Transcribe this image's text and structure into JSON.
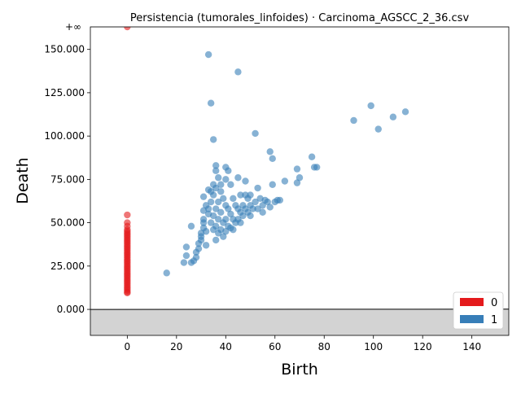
{
  "chart_data": {
    "type": "scatter",
    "title": "Persistencia (tumorales_linfoides) · Carcinoma_AGSCC_2_36.csv",
    "xlabel": "Birth",
    "ylabel": "Death",
    "xlim": [
      -15,
      155
    ],
    "ylim": [
      -15000,
      163000
    ],
    "x_ticks": [
      0,
      20,
      40,
      60,
      80,
      100,
      120,
      140
    ],
    "y_ticks": [
      0,
      25000,
      50000,
      75000,
      100000,
      125000,
      150000
    ],
    "y_tick_labels": [
      "0.000",
      "25.000",
      "50.000",
      "75.000",
      "100.000",
      "125.000",
      "150.000"
    ],
    "infinity_value": 163000,
    "infinity_label": "+∞",
    "diagonal": true,
    "legend": {
      "placement": "bottom-right",
      "entries": [
        "0",
        "1"
      ]
    },
    "colors": {
      "dim0": "#e41a1c",
      "dim1": "#377eb8",
      "diagonal_fill": "#d3d3d3",
      "infinity_line": "#808080"
    },
    "series": [
      {
        "name": "0",
        "points": [
          [
            0,
            163000
          ],
          [
            0,
            54500
          ],
          [
            0,
            50000
          ],
          [
            0,
            48000
          ],
          [
            0,
            46000
          ],
          [
            0,
            45000
          ],
          [
            0,
            44000
          ],
          [
            0,
            43000
          ],
          [
            0,
            42000
          ],
          [
            0,
            41000
          ],
          [
            0,
            40000
          ],
          [
            0,
            39000
          ],
          [
            0,
            38000
          ],
          [
            0,
            37000
          ],
          [
            0,
            36000
          ],
          [
            0,
            35000
          ],
          [
            0,
            34000
          ],
          [
            0,
            33000
          ],
          [
            0,
            32000
          ],
          [
            0,
            31000
          ],
          [
            0,
            30000
          ],
          [
            0,
            29000
          ],
          [
            0,
            28000
          ],
          [
            0,
            27000
          ],
          [
            0,
            26000
          ],
          [
            0,
            25000
          ],
          [
            0,
            24000
          ],
          [
            0,
            23000
          ],
          [
            0,
            22000
          ],
          [
            0,
            21000
          ],
          [
            0,
            20000
          ],
          [
            0,
            19000
          ],
          [
            0,
            18000
          ],
          [
            0,
            17000
          ],
          [
            0,
            16000
          ],
          [
            0,
            15000
          ],
          [
            0,
            14000
          ],
          [
            0,
            13000
          ],
          [
            0,
            12000
          ],
          [
            0,
            11000
          ],
          [
            0,
            10000
          ],
          [
            0,
            9500
          ]
        ]
      },
      {
        "name": "1",
        "points": [
          [
            16,
            21000
          ],
          [
            23,
            27000
          ],
          [
            24,
            31000
          ],
          [
            24,
            36000
          ],
          [
            26,
            48000
          ],
          [
            26,
            27000
          ],
          [
            27,
            28000
          ],
          [
            28,
            30000
          ],
          [
            28,
            33000
          ],
          [
            29,
            35000
          ],
          [
            29,
            38000
          ],
          [
            30,
            40000
          ],
          [
            30,
            42000
          ],
          [
            30,
            44000
          ],
          [
            31,
            52000
          ],
          [
            31,
            47000
          ],
          [
            31,
            50000
          ],
          [
            31,
            57000
          ],
          [
            31,
            65000
          ],
          [
            32,
            60000
          ],
          [
            32,
            37000
          ],
          [
            32,
            45000
          ],
          [
            33,
            69000
          ],
          [
            33,
            55000
          ],
          [
            33,
            147000
          ],
          [
            33,
            58000
          ],
          [
            34,
            119000
          ],
          [
            34,
            50000
          ],
          [
            34,
            62000
          ],
          [
            34,
            68000
          ],
          [
            35,
            72000
          ],
          [
            35,
            98000
          ],
          [
            35,
            66000
          ],
          [
            35,
            54000
          ],
          [
            35,
            46000
          ],
          [
            36,
            83000
          ],
          [
            36,
            80000
          ],
          [
            36,
            70000
          ],
          [
            36,
            58000
          ],
          [
            36,
            48000
          ],
          [
            36,
            40000
          ],
          [
            37,
            76000
          ],
          [
            37,
            62000
          ],
          [
            37,
            52000
          ],
          [
            37,
            44000
          ],
          [
            38,
            72000
          ],
          [
            38,
            68000
          ],
          [
            38,
            56000
          ],
          [
            38,
            46000
          ],
          [
            39,
            64000
          ],
          [
            39,
            50000
          ],
          [
            39,
            42000
          ],
          [
            40,
            82000
          ],
          [
            40,
            75000
          ],
          [
            40,
            60000
          ],
          [
            40,
            52000
          ],
          [
            40,
            45000
          ],
          [
            41,
            80000
          ],
          [
            41,
            58000
          ],
          [
            41,
            48000
          ],
          [
            42,
            72000
          ],
          [
            42,
            55000
          ],
          [
            42,
            47000
          ],
          [
            43,
            64000
          ],
          [
            43,
            52000
          ],
          [
            43,
            46000
          ],
          [
            44,
            60000
          ],
          [
            44,
            50000
          ],
          [
            45,
            137000
          ],
          [
            45,
            76000
          ],
          [
            45,
            58000
          ],
          [
            45,
            52000
          ],
          [
            46,
            66000
          ],
          [
            46,
            56000
          ],
          [
            46,
            50000
          ],
          [
            47,
            60000
          ],
          [
            47,
            54000
          ],
          [
            48,
            74000
          ],
          [
            48,
            66000
          ],
          [
            48,
            58000
          ],
          [
            49,
            64000
          ],
          [
            49,
            56000
          ],
          [
            50,
            66000
          ],
          [
            50,
            60000
          ],
          [
            50,
            54000
          ],
          [
            51,
            58000
          ],
          [
            52,
            101500
          ],
          [
            52,
            62000
          ],
          [
            53,
            70000
          ],
          [
            53,
            58000
          ],
          [
            54,
            64000
          ],
          [
            55,
            60000
          ],
          [
            55,
            56000
          ],
          [
            56,
            63000
          ],
          [
            57,
            62000
          ],
          [
            58,
            91000
          ],
          [
            58,
            59000
          ],
          [
            59,
            87000
          ],
          [
            59,
            72000
          ],
          [
            60,
            62000
          ],
          [
            61,
            63000
          ],
          [
            62,
            63000
          ],
          [
            64,
            74000
          ],
          [
            69,
            81000
          ],
          [
            69,
            73000
          ],
          [
            70,
            76000
          ],
          [
            75,
            88000
          ],
          [
            76,
            82000
          ],
          [
            77,
            82000
          ],
          [
            92,
            109000
          ],
          [
            99,
            117500
          ],
          [
            102,
            104000
          ],
          [
            108,
            111000
          ],
          [
            113,
            114000
          ]
        ]
      }
    ]
  }
}
